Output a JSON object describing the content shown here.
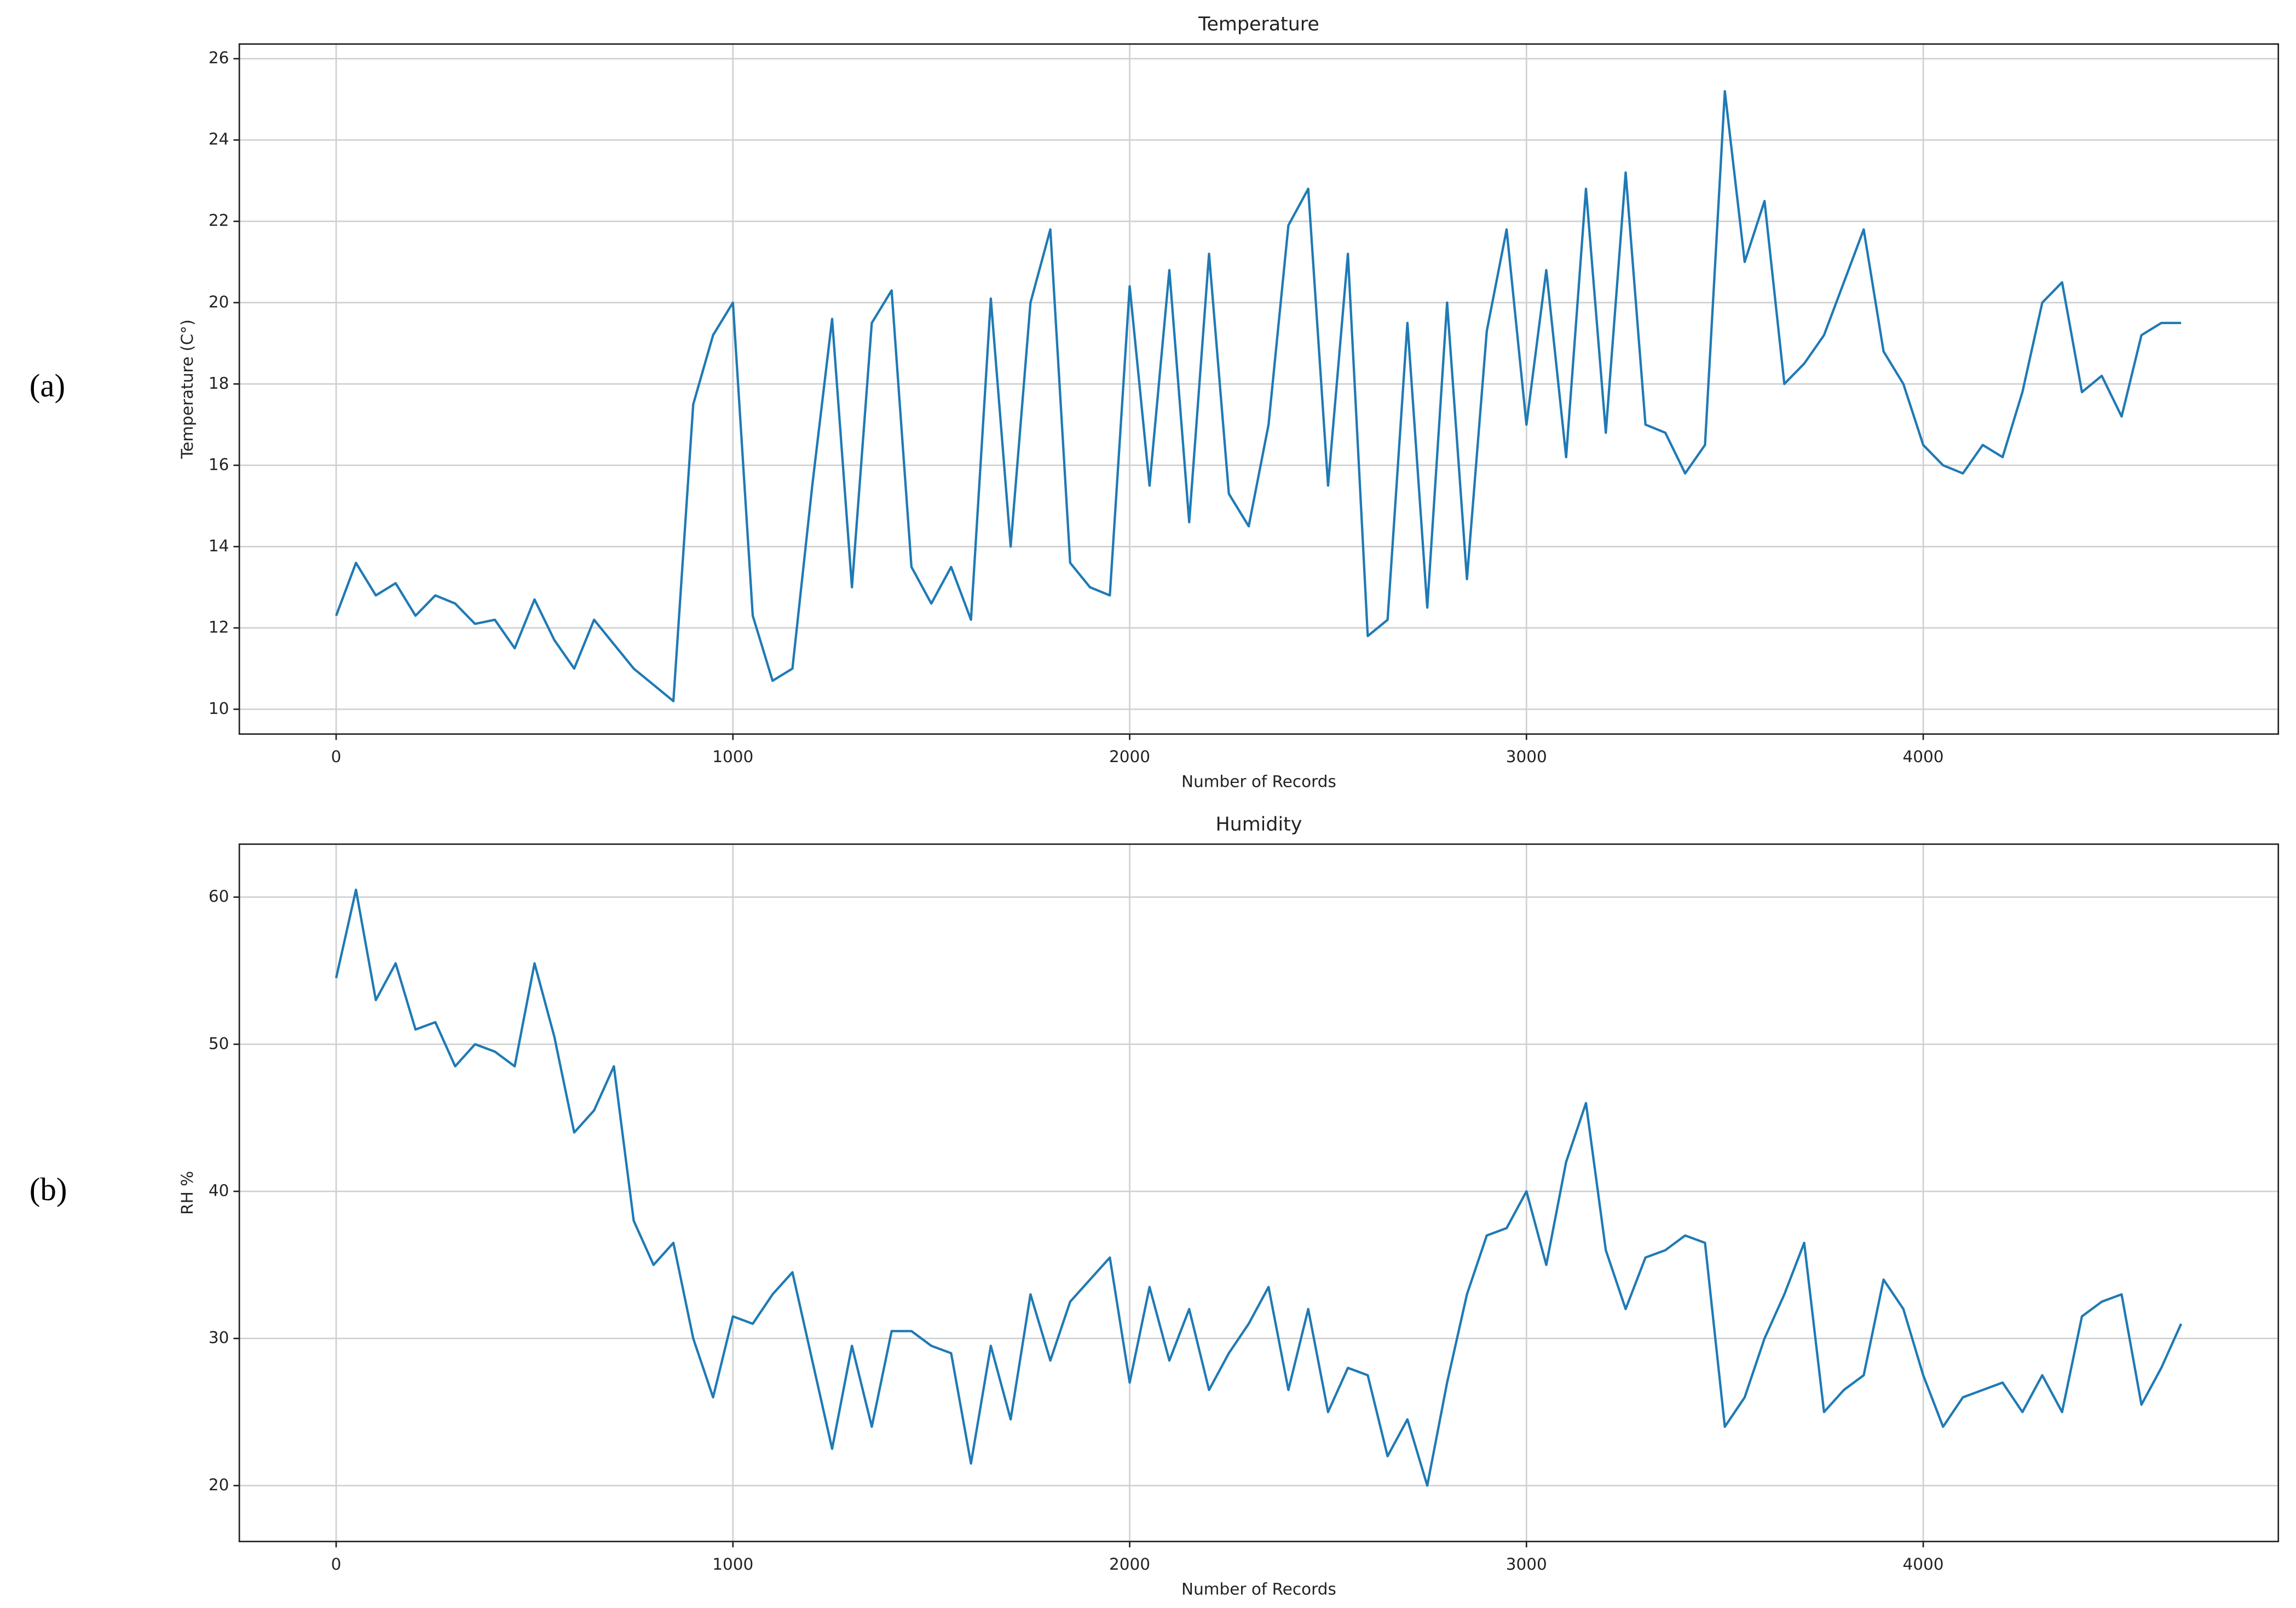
{
  "chart_data": [
    {
      "type": "line",
      "panel_label": "(a)",
      "title": "Temperature",
      "x_label": "Number of Records",
      "y_label": "Temperature (C°)",
      "x": [
        0,
        50,
        100,
        150,
        200,
        250,
        300,
        350,
        400,
        450,
        500,
        550,
        600,
        650,
        700,
        750,
        800,
        850,
        900,
        950,
        1000,
        1050,
        1100,
        1150,
        1200,
        1250,
        1300,
        1350,
        1400,
        1450,
        1500,
        1550,
        1600,
        1650,
        1700,
        1750,
        1800,
        1850,
        1900,
        1950,
        2000,
        2050,
        2100,
        2150,
        2200,
        2250,
        2300,
        2350,
        2400,
        2450,
        2500,
        2550,
        2600,
        2650,
        2700,
        2750,
        2800,
        2850,
        2900,
        2950,
        3000,
        3050,
        3100,
        3150,
        3200,
        3250,
        3300,
        3350,
        3400,
        3450,
        3500,
        3550,
        3600,
        3650,
        3700,
        3750,
        3800,
        3850,
        3900,
        3950,
        4000,
        4050,
        4100,
        4150,
        4200,
        4250,
        4300,
        4350,
        4400,
        4450,
        4500,
        4550,
        4600,
        4650
      ],
      "series": [
        {
          "color": "#1f7ab5",
          "values": [
            12.3,
            13.6,
            12.8,
            13.1,
            12.3,
            12.8,
            12.6,
            12.1,
            12.2,
            11.5,
            12.7,
            11.7,
            11.0,
            12.2,
            11.6,
            11.0,
            10.6,
            10.2,
            17.5,
            19.2,
            20.0,
            12.3,
            10.7,
            11.0,
            15.5,
            19.6,
            13.0,
            19.5,
            20.3,
            13.5,
            12.6,
            13.5,
            12.2,
            20.1,
            14.0,
            20.0,
            21.8,
            13.6,
            13.0,
            12.8,
            20.4,
            15.5,
            20.8,
            14.6,
            21.2,
            15.3,
            14.5,
            17.0,
            21.9,
            22.8,
            15.5,
            21.2,
            11.8,
            12.2,
            19.5,
            12.5,
            20.0,
            13.2,
            19.3,
            21.8,
            17.0,
            20.8,
            16.2,
            22.8,
            16.8,
            23.2,
            17.0,
            16.8,
            15.8,
            16.5,
            25.2,
            21.0,
            22.5,
            18.0,
            18.5,
            19.2,
            20.5,
            21.8,
            18.8,
            18.0,
            16.5,
            16.0,
            15.8,
            16.5,
            16.2,
            17.8,
            20.0,
            20.5,
            17.8,
            18.2,
            17.2,
            19.2,
            19.5,
            19.5
          ]
        }
      ],
      "xlim": [
        -244,
        4895
      ],
      "xticks": [
        0,
        1000,
        2000,
        3000,
        4000
      ],
      "ylim": [
        9.39,
        26.36
      ],
      "yticks": [
        10,
        12,
        14,
        16,
        18,
        20,
        22,
        24,
        26
      ],
      "grid": true
    },
    {
      "type": "line",
      "panel_label": "(b)",
      "title": "Humidity",
      "x_label": "Number of Records",
      "y_label": "RH %",
      "x": [
        0,
        50,
        100,
        150,
        200,
        250,
        300,
        350,
        400,
        450,
        500,
        550,
        600,
        650,
        700,
        750,
        800,
        850,
        900,
        950,
        1000,
        1050,
        1100,
        1150,
        1200,
        1250,
        1300,
        1350,
        1400,
        1450,
        1500,
        1550,
        1600,
        1650,
        1700,
        1750,
        1800,
        1850,
        1900,
        1950,
        2000,
        2050,
        2100,
        2150,
        2200,
        2250,
        2300,
        2350,
        2400,
        2450,
        2500,
        2550,
        2600,
        2650,
        2700,
        2750,
        2800,
        2850,
        2900,
        2950,
        3000,
        3050,
        3100,
        3150,
        3200,
        3250,
        3300,
        3350,
        3400,
        3450,
        3500,
        3550,
        3600,
        3650,
        3700,
        3750,
        3800,
        3850,
        3900,
        3950,
        4000,
        4050,
        4100,
        4150,
        4200,
        4250,
        4300,
        4350,
        4400,
        4450,
        4500,
        4550,
        4600,
        4650
      ],
      "series": [
        {
          "color": "#1f7ab5",
          "values": [
            54.5,
            60.5,
            53.0,
            55.5,
            51.0,
            51.5,
            48.5,
            50.0,
            49.5,
            48.5,
            55.5,
            50.5,
            44.0,
            45.5,
            48.5,
            38.0,
            35.0,
            36.5,
            30.0,
            26.0,
            31.5,
            31.0,
            33.0,
            34.5,
            28.5,
            22.5,
            29.5,
            24.0,
            30.5,
            30.5,
            29.5,
            29.0,
            21.5,
            29.5,
            24.5,
            33.0,
            28.5,
            32.5,
            34.0,
            35.5,
            27.0,
            33.5,
            28.5,
            32.0,
            26.5,
            29.0,
            31.0,
            33.5,
            26.5,
            32.0,
            25.0,
            28.0,
            27.5,
            22.0,
            24.5,
            20.0,
            27.0,
            33.0,
            37.0,
            37.5,
            40.0,
            35.0,
            42.0,
            46.0,
            36.0,
            32.0,
            35.5,
            36.0,
            37.0,
            36.5,
            24.0,
            26.0,
            30.0,
            33.0,
            36.5,
            25.0,
            26.5,
            27.5,
            34.0,
            32.0,
            27.5,
            24.0,
            26.0,
            26.5,
            27.0,
            25.0,
            27.5,
            25.0,
            31.5,
            32.5,
            33.0,
            25.5,
            28.0,
            31.0
          ]
        }
      ],
      "xlim": [
        -244,
        4895
      ],
      "xticks": [
        0,
        1000,
        2000,
        3000,
        4000
      ],
      "ylim": [
        16.2,
        63.6
      ],
      "yticks": [
        20,
        30,
        40,
        50,
        60
      ],
      "grid": true
    }
  ]
}
